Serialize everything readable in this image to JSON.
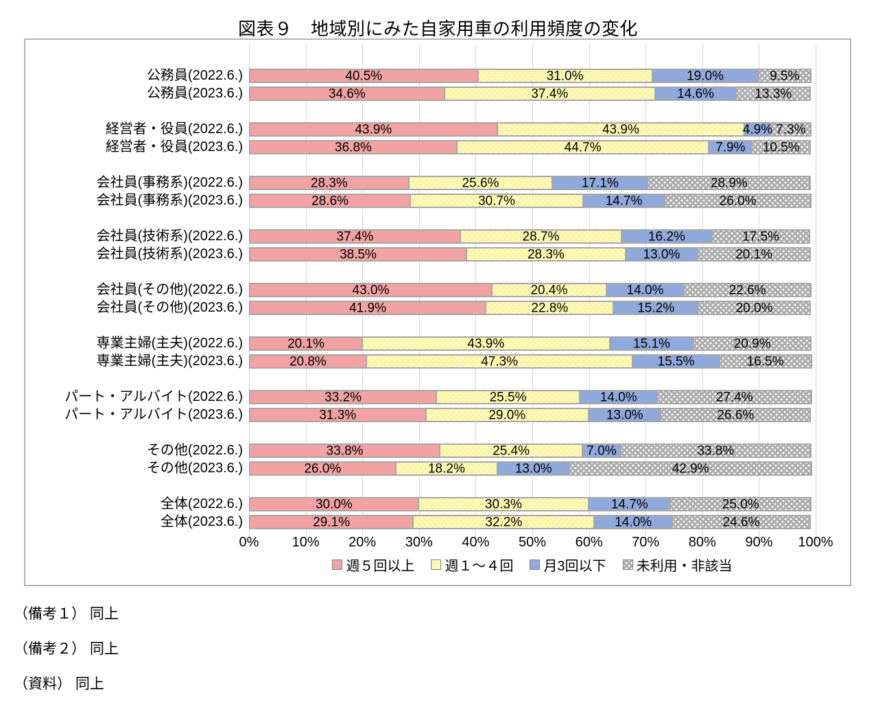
{
  "title": "図表９　地域別にみた自家用車の利用頻度の変化",
  "chart_data": {
    "type": "bar",
    "orientation": "horizontal",
    "stacked": true,
    "title": "図表９　地域別にみた自家用車の利用頻度の変化",
    "categories": [
      "公務員(2022.6.)",
      "公務員(2023.6.)",
      "経営者・役員(2022.6.)",
      "経営者・役員(2023.6.)",
      "会社員(事務系)(2022.6.)",
      "会社員(事務系)(2023.6.)",
      "会社員(技術系)(2022.6.)",
      "会社員(技術系)(2023.6.)",
      "会社員(その他)(2022.6.)",
      "会社員(その他)(2023.6.)",
      "専業主婦(主夫)(2022.6.)",
      "専業主婦(主夫)(2023.6.)",
      "パート・アルバイト(2022.6.)",
      "パート・アルバイト(2023.6.)",
      "その他(2022.6.)",
      "その他(2023.6.)",
      "全体(2022.6.)",
      "全体(2023.6.)"
    ],
    "series": [
      {
        "key": "week5plus",
        "name": "週５回以上",
        "color": "#f2a2a2",
        "values": [
          40.5,
          34.6,
          43.9,
          36.8,
          28.3,
          28.6,
          37.4,
          38.5,
          43.0,
          41.9,
          20.1,
          20.8,
          33.2,
          31.3,
          33.8,
          26.0,
          30.0,
          29.1
        ]
      },
      {
        "key": "week1to4",
        "name": "週１～４回",
        "color": "#fbf5a3",
        "values": [
          31.0,
          37.4,
          43.9,
          44.7,
          25.6,
          30.7,
          28.7,
          28.3,
          20.4,
          22.8,
          43.9,
          47.3,
          25.5,
          29.0,
          25.4,
          18.2,
          30.3,
          32.2
        ]
      },
      {
        "key": "month3less",
        "name": "月3回以下",
        "color": "#90a9dc",
        "values": [
          19.0,
          14.6,
          4.9,
          7.9,
          17.1,
          14.7,
          16.2,
          13.0,
          14.0,
          15.2,
          15.1,
          15.5,
          14.0,
          13.0,
          7.0,
          13.0,
          14.7,
          14.0
        ]
      },
      {
        "key": "unused",
        "name": "未利用・非該当",
        "color": "#acacac",
        "values": [
          9.5,
          13.3,
          7.3,
          10.5,
          28.9,
          26.0,
          17.5,
          20.1,
          22.6,
          20.0,
          20.9,
          16.5,
          27.4,
          26.6,
          33.8,
          42.9,
          25.0,
          24.6
        ]
      }
    ],
    "x_ticks": [
      "0%",
      "10%",
      "20%",
      "30%",
      "40%",
      "50%",
      "60%",
      "70%",
      "80%",
      "90%",
      "100%"
    ],
    "xlim": [
      0,
      100
    ],
    "grid": true,
    "legend_position": "bottom",
    "value_label_format": "one-decimal-percent"
  },
  "notes": [
    "（備考１） 同上",
    "（備考２） 同上",
    "（資料） 同上"
  ]
}
